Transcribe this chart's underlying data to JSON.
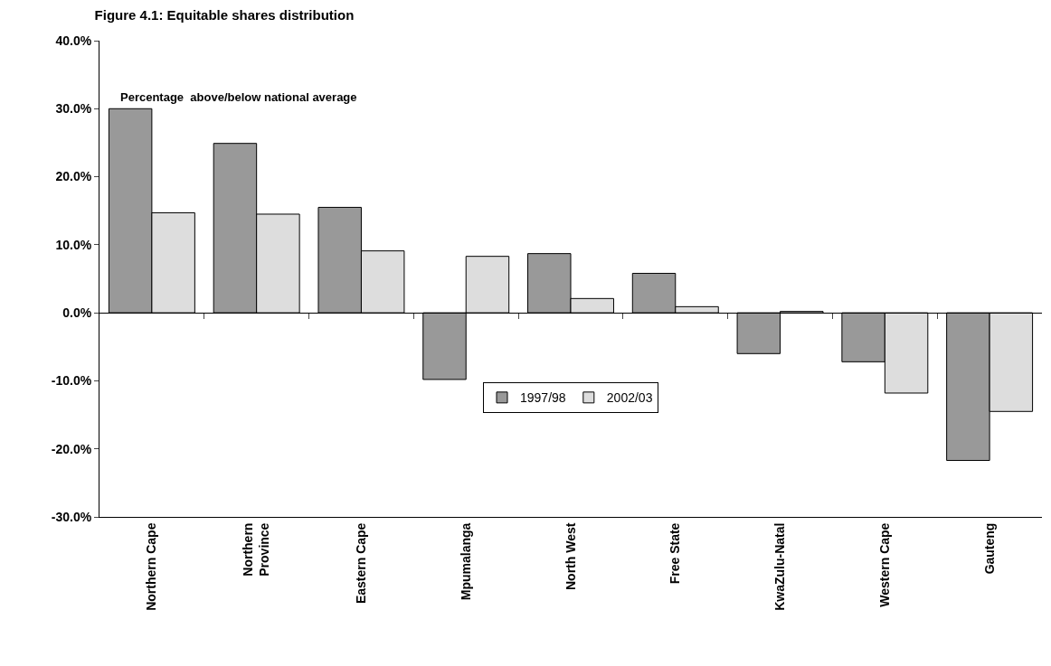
{
  "chart_data": {
    "type": "bar",
    "title": "Figure 4.1: Equitable shares distribution",
    "annotations": [
      "Percentage  above/below national average"
    ],
    "categories": [
      "Northern Cape",
      "Northern Province",
      "Eastern Cape",
      "Mpumalanga",
      "North West",
      "Free State",
      "KwaZulu-Natal",
      "Western Cape",
      "Gauteng"
    ],
    "series": [
      {
        "name": "1997/98",
        "color": "#999999",
        "values": [
          30.0,
          24.9,
          15.5,
          -9.8,
          8.7,
          5.8,
          -6.0,
          -7.2,
          -21.7
        ]
      },
      {
        "name": "2002/03",
        "color": "#dddddd",
        "values": [
          14.7,
          14.5,
          9.1,
          8.3,
          2.1,
          0.9,
          0.2,
          -11.8,
          -14.5
        ]
      }
    ],
    "ylim": [
      -30,
      40
    ],
    "yticks": [
      {
        "value": -30,
        "label": "-30.0%"
      },
      {
        "value": -20,
        "label": "-20.0%"
      },
      {
        "value": -10,
        "label": "-10.0%"
      },
      {
        "value": 0,
        "label": "0.0%"
      },
      {
        "value": 10,
        "label": "10.0%"
      },
      {
        "value": 20,
        "label": "20.0%"
      },
      {
        "value": 30,
        "label": "30.0%"
      },
      {
        "value": 40,
        "label": "40.0%"
      }
    ],
    "legend": "center"
  }
}
